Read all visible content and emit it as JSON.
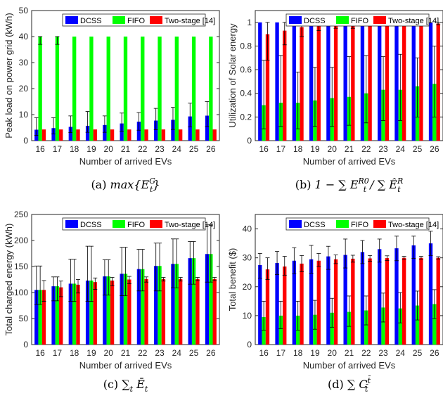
{
  "colors": {
    "DCSS": "#0000ff",
    "FIFO": "#00ff00",
    "Two-stage [14]": "#ff0000",
    "error_bar": "#000000"
  },
  "chart_data": [
    {
      "id": "a",
      "type": "bar",
      "xlabel": "Number of arrived EVs",
      "ylabel": "Peak load on power grid (kWh)",
      "ylim": [
        0,
        50
      ],
      "yticks": [
        0,
        10,
        20,
        30,
        40,
        50
      ],
      "ytick_labels": [
        "0",
        "10",
        "20",
        "30",
        "40",
        "50"
      ],
      "categories": [
        "16",
        "17",
        "18",
        "19",
        "20",
        "21",
        "22",
        "23",
        "24",
        "25",
        "26"
      ],
      "legend_position": "top",
      "grid": false,
      "caption": {
        "label": "(a)",
        "text": "max{E",
        "sup": "G",
        "sub": "t",
        "tail": "}"
      },
      "series": [
        {
          "name": "DCSS",
          "values": [
            4.2,
            4.8,
            5.3,
            5.7,
            6.0,
            6.6,
            7.3,
            7.7,
            8.0,
            9.3,
            9.6
          ],
          "err_low": [
            2.2,
            2.2,
            2.2,
            2.5,
            2.8,
            3.0,
            3.3,
            3.5,
            3.7,
            4.0,
            4.2
          ],
          "err_high": [
            4.6,
            4.0,
            4.2,
            5.5,
            3.5,
            4.0,
            3.5,
            4.7,
            4.8,
            5.1,
            5.4
          ]
        },
        {
          "name": "FIFO",
          "values": [
            40,
            40,
            40,
            40,
            40,
            40,
            40,
            40,
            40,
            40,
            40
          ],
          "err_low": [
            3.0,
            3.0,
            0,
            0,
            0,
            0,
            0,
            0,
            0,
            0,
            0
          ],
          "err_high": [
            0,
            0,
            0,
            0,
            0,
            0,
            0,
            0,
            0,
            0,
            0
          ]
        },
        {
          "name": "Two-stage [14]",
          "values": [
            4.3,
            4.3,
            4.3,
            4.3,
            4.3,
            4.3,
            4.3,
            4.3,
            4.3,
            4.3,
            4.3
          ],
          "err_low": [
            0,
            0,
            0,
            0,
            0,
            0,
            0,
            0,
            0,
            0,
            0
          ],
          "err_high": [
            0,
            0,
            0,
            0,
            0,
            0,
            0,
            0,
            0,
            0,
            0
          ]
        }
      ]
    },
    {
      "id": "b",
      "type": "bar",
      "xlabel": "Number of arrived EVs",
      "ylabel": "Utilization of Solar energy",
      "ylim": [
        0,
        1.1
      ],
      "yticks": [
        0,
        0.2,
        0.4,
        0.6,
        0.8,
        1.0
      ],
      "ytick_labels": [
        "0",
        "0.2",
        "0.4",
        "0.6",
        "0.8",
        "1"
      ],
      "categories": [
        "16",
        "17",
        "18",
        "19",
        "20",
        "21",
        "22",
        "23",
        "24",
        "25",
        "26"
      ],
      "legend_position": "top",
      "grid": false,
      "caption": {
        "label": "(b)",
        "text": "1 − ∑ E",
        "sup": "R0",
        "sub": "t",
        "tail": " / ∑ Ê",
        "sup2": "R",
        "sub2": "t"
      },
      "series": [
        {
          "name": "DCSS",
          "values": [
            1,
            1,
            1,
            1,
            1,
            1,
            1,
            1,
            1,
            1,
            1
          ],
          "err_low": [
            0,
            0,
            0,
            0,
            0,
            0,
            0,
            0,
            0,
            0,
            0
          ],
          "err_high": [
            0,
            0,
            0,
            0,
            0,
            0,
            0,
            0,
            0,
            0,
            0
          ]
        },
        {
          "name": "FIFO",
          "values": [
            0.3,
            0.32,
            0.32,
            0.34,
            0.36,
            0.37,
            0.4,
            0.43,
            0.43,
            0.46,
            0.48
          ],
          "err_low": [
            0.2,
            0.2,
            0.22,
            0.22,
            0.24,
            0.24,
            0.25,
            0.26,
            0.26,
            0.26,
            0.28
          ],
          "err_high": [
            0.38,
            0.4,
            0.26,
            0.28,
            0.26,
            0.34,
            0.32,
            0.28,
            0.3,
            0.24,
            0.32
          ]
        },
        {
          "name": "Two-stage [14]",
          "values": [
            0.9,
            0.93,
            0.96,
            0.97,
            0.98,
            0.98,
            0.99,
            0.99,
            0.99,
            0.99,
            0.99
          ],
          "err_low": [
            0.22,
            0.12,
            0.08,
            0.04,
            0.03,
            0.03,
            0.02,
            0.01,
            0.01,
            0.01,
            0.01
          ],
          "err_high": [
            0.1,
            0.07,
            0.04,
            0.03,
            0.02,
            0.02,
            0.01,
            0.01,
            0.01,
            0.01,
            0.01
          ]
        }
      ]
    },
    {
      "id": "c",
      "type": "bar",
      "xlabel": "Number of arrived EVs",
      "ylabel": "Total charged energy (kWh)",
      "ylim": [
        0,
        250
      ],
      "yticks": [
        0,
        50,
        100,
        150,
        200,
        250
      ],
      "ytick_labels": [
        "0",
        "50",
        "100",
        "150",
        "200",
        "250"
      ],
      "categories": [
        "16",
        "17",
        "18",
        "19",
        "20",
        "21",
        "22",
        "23",
        "24",
        "25",
        "26"
      ],
      "legend_position": "top",
      "grid": false,
      "caption": {
        "label": "(c)",
        "text": "∑",
        "sub": "t",
        "tail": " Ē",
        "sub2": "t"
      },
      "series": [
        {
          "name": "DCSS",
          "values": [
            105,
            112,
            117,
            123,
            131,
            136,
            145,
            151,
            155,
            166,
            174
          ],
          "err_low": [
            28,
            28,
            34,
            40,
            36,
            42,
            42,
            48,
            46,
            50,
            54
          ],
          "err_high": [
            46,
            18,
            47,
            66,
            32,
            51,
            38,
            44,
            48,
            32,
            56
          ]
        },
        {
          "name": "FIFO",
          "values": [
            105,
            112,
            117,
            123,
            131,
            136,
            145,
            151,
            155,
            166,
            174
          ],
          "err_low": [
            28,
            28,
            34,
            40,
            36,
            42,
            42,
            48,
            46,
            50,
            54
          ],
          "err_high": [
            46,
            18,
            47,
            66,
            32,
            51,
            38,
            44,
            48,
            32,
            56
          ]
        },
        {
          "name": "Two-stage [14]",
          "values": [
            105,
            110,
            115,
            120,
            123,
            125,
            126,
            126,
            126,
            126,
            126
          ],
          "err_low": [
            22,
            18,
            16,
            14,
            10,
            8,
            6,
            4,
            4,
            3,
            3
          ],
          "err_high": [
            18,
            12,
            10,
            8,
            6,
            6,
            4,
            3,
            3,
            3,
            3
          ]
        }
      ]
    },
    {
      "id": "d",
      "type": "bar",
      "xlabel": "Number of arrived EVs",
      "ylabel": "Total benefit ($)",
      "ylim": [
        0,
        45
      ],
      "yticks": [
        0,
        10,
        20,
        30,
        40
      ],
      "ytick_labels": [
        "0",
        "10",
        "20",
        "30",
        "40"
      ],
      "categories": [
        "16",
        "17",
        "18",
        "19",
        "20",
        "21",
        "22",
        "23",
        "24",
        "25",
        "26"
      ],
      "legend_position": "top",
      "grid": false,
      "caption": {
        "label": "(d)",
        "text": "∑ C",
        "sup": "t̄",
        "sub": "t̄"
      },
      "series": [
        {
          "name": "DCSS",
          "values": [
            27.5,
            28.2,
            29.0,
            29.5,
            30.5,
            31.0,
            32.0,
            33.0,
            33.3,
            34.3,
            35.0
          ],
          "err_low": [
            4.5,
            4.0,
            4.5,
            4.8,
            4.5,
            4.5,
            4.0,
            4.5,
            4.3,
            4.5,
            4.2
          ],
          "err_high": [
            4.0,
            4.0,
            4.5,
            4.8,
            3.5,
            5.5,
            4.0,
            3.5,
            4.2,
            3.2,
            4.2
          ]
        },
        {
          "name": "FIFO",
          "values": [
            9.5,
            10.0,
            10.0,
            10.3,
            11.0,
            11.3,
            11.8,
            12.8,
            12.5,
            13.5,
            14.0
          ],
          "err_low": [
            4.5,
            4.5,
            5.0,
            5.0,
            5.0,
            5.0,
            5.0,
            5.0,
            5.0,
            5.0,
            5.0
          ],
          "err_high": [
            5.5,
            5.0,
            5.0,
            5.0,
            5.0,
            5.5,
            5.0,
            5.0,
            5.5,
            5.0,
            5.0
          ]
        },
        {
          "name": "Two-stage [14]",
          "values": [
            26.0,
            27.0,
            28.0,
            29.0,
            29.5,
            29.7,
            29.8,
            29.9,
            30.0,
            30.0,
            30.0
          ],
          "err_low": [
            3.5,
            3.0,
            2.8,
            2.0,
            1.5,
            1.2,
            1.0,
            0.8,
            0.5,
            0.5,
            0.4
          ],
          "err_high": [
            4.0,
            3.5,
            2.8,
            2.5,
            1.5,
            1.2,
            1.0,
            0.8,
            0.5,
            0.5,
            0.4
          ]
        }
      ]
    }
  ]
}
